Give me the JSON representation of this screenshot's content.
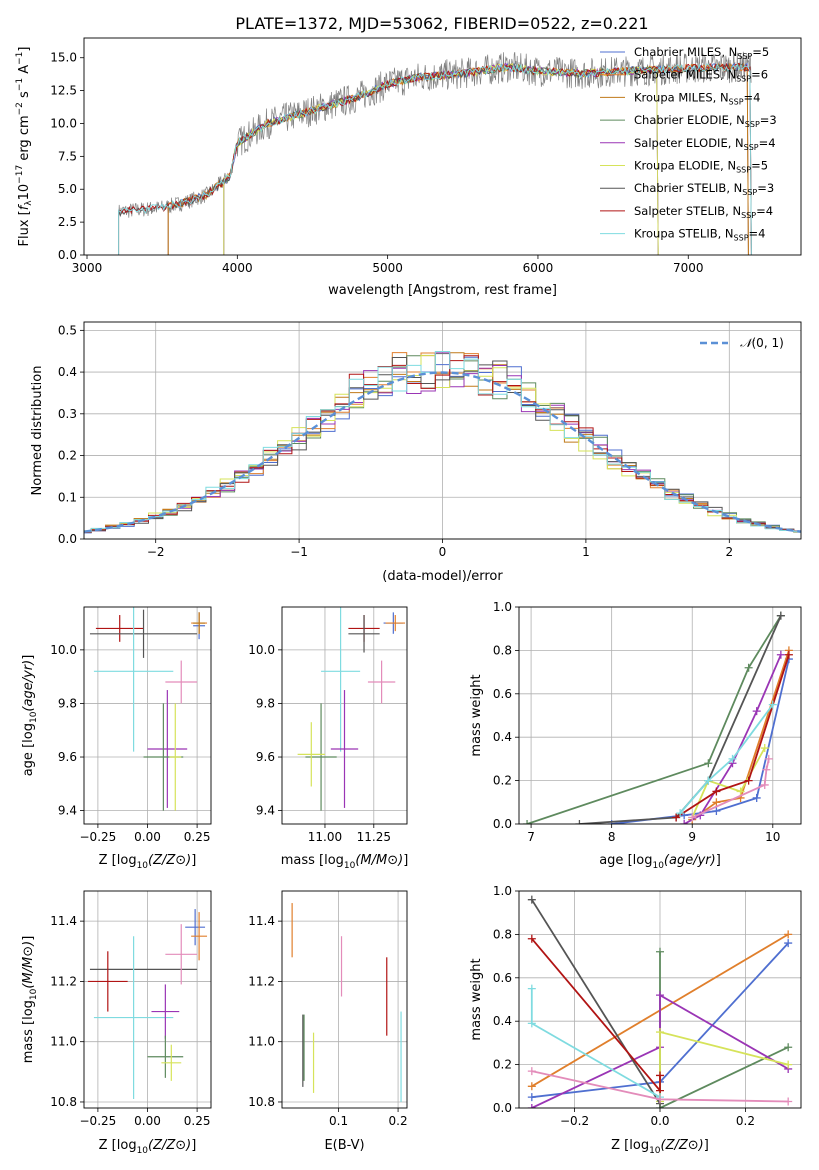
{
  "figure": {
    "title": "PLATE=1372, MJD=53062, FIBERID=0522, z=0.221"
  },
  "colors": {
    "models": [
      "#4f6fd0",
      "#e07f2c",
      "#c07a1a",
      "#5e8a5e",
      "#9a35b5",
      "#d6e35a",
      "#555555",
      "#b11414",
      "#7fdbe0"
    ],
    "extra": [
      "#e38cba",
      "#e38cba"
    ],
    "gaussian": "#5b90d6",
    "grid": "#b0b0b0"
  },
  "chart_data": [
    {
      "id": "spectrum",
      "type": "line",
      "title": "PLATE=1372, MJD=53062, FIBERID=0522, z=0.221",
      "xlabel": "wavelength [Angstrom, rest frame]",
      "ylabel": "Flux [f_λ 10^-17 erg cm^-2 s^-1 A^-1]",
      "xlim": [
        2980,
        7750
      ],
      "ylim": [
        0,
        16.5
      ],
      "xticks": [
        3000,
        4000,
        5000,
        6000,
        7000
      ],
      "yticks": [
        0.0,
        2.5,
        5.0,
        7.5,
        10.0,
        12.5,
        15.0
      ],
      "ytick_labels": [
        "0.0",
        "2.5",
        "5.0",
        "7.5",
        "10.0",
        "12.5",
        "15.0"
      ],
      "grid": false,
      "legend": "top-right",
      "series": [
        {
          "name": "Chabrier MILES, N_SSP=5",
          "label_main": "Chabrier MILES, N",
          "label_sub": "SSP",
          "label_tail": "=5",
          "start": 3540,
          "end": 7400
        },
        {
          "name": "Salpeter MILES, N_SSP=6",
          "label_main": "Salpeter MILES, N",
          "label_sub": "SSP",
          "label_tail": "=6",
          "start": 3540,
          "end": 7400
        },
        {
          "name": "Kroupa MILES, N_SSP=4",
          "label_main": "Kroupa MILES, N",
          "label_sub": "SSP",
          "label_tail": "=4",
          "start": 3540,
          "end": 7400
        },
        {
          "name": "Chabrier ELODIE, N_SSP=3",
          "label_main": "Chabrier ELODIE, N",
          "label_sub": "SSP",
          "label_tail": "=3",
          "start": 3910,
          "end": 6800
        },
        {
          "name": "Salpeter ELODIE, N_SSP=4",
          "label_main": "Salpeter ELODIE, N",
          "label_sub": "SSP",
          "label_tail": "=4",
          "start": 3910,
          "end": 6800
        },
        {
          "name": "Kroupa ELODIE, N_SSP=5",
          "label_main": "Kroupa ELODIE, N",
          "label_sub": "SSP",
          "label_tail": "=5",
          "start": 3910,
          "end": 6800
        },
        {
          "name": "Chabrier STELIB, N_SSP=3",
          "label_main": "Chabrier STELIB, N",
          "label_sub": "SSP",
          "label_tail": "=3",
          "start": 3210,
          "end": 7420
        },
        {
          "name": "Salpeter STELIB, N_SSP=4",
          "label_main": "Salpeter STELIB, N",
          "label_sub": "SSP",
          "label_tail": "=4",
          "start": 3210,
          "end": 7420
        },
        {
          "name": "Kroupa STELIB, N_SSP=4",
          "label_main": "Kroupa STELIB, N",
          "label_sub": "SSP",
          "label_tail": "=4",
          "start": 3210,
          "end": 7420
        }
      ],
      "continuum_anchors": [
        [
          3210,
          3.3
        ],
        [
          3500,
          3.6
        ],
        [
          3650,
          4.0
        ],
        [
          3800,
          4.6
        ],
        [
          3950,
          6.0
        ],
        [
          4000,
          8.5
        ],
        [
          4200,
          10.0
        ],
        [
          4500,
          11.0
        ],
        [
          4800,
          12.0
        ],
        [
          5000,
          13.0
        ],
        [
          5200,
          13.5
        ],
        [
          5500,
          13.8
        ],
        [
          5800,
          14.3
        ],
        [
          6000,
          14.0
        ],
        [
          6300,
          13.8
        ],
        [
          6600,
          14.0
        ],
        [
          7000,
          14.2
        ],
        [
          7400,
          14.3
        ]
      ]
    },
    {
      "id": "residuals",
      "type": "histogram",
      "xlabel": "(data-model)/error",
      "ylabel": "Normed distribution",
      "xlim": [
        -2.5,
        2.5
      ],
      "ylim": [
        0,
        0.52
      ],
      "xticks": [
        -2,
        -1,
        0,
        1,
        2
      ],
      "xtick_labels": [
        "−2",
        "−1",
        "0",
        "1",
        "2"
      ],
      "yticks": [
        0.0,
        0.1,
        0.2,
        0.3,
        0.4,
        0.5
      ],
      "ytick_labels": [
        "0.0",
        "0.1",
        "0.2",
        "0.3",
        "0.4",
        "0.5"
      ],
      "grid": true,
      "legend": "top-right",
      "legend_label": "N(0,1)",
      "legend_label_main": "𝒩",
      "legend_label_tail": "(0, 1)",
      "bin_width": 0.1
    },
    {
      "id": "age_vs_Z",
      "type": "errorbar",
      "xlabel": "Z [log10(Z/Z⊙)]",
      "ylabel": "age [log10(age/yr)]",
      "xlim": [
        -0.32,
        0.32
      ],
      "ylim": [
        9.35,
        10.16
      ],
      "xticks": [
        -0.25,
        0.0,
        0.25
      ],
      "xtick_labels": [
        "−0.25",
        "0.00",
        "0.25"
      ],
      "yticks": [
        9.4,
        9.6,
        9.8,
        10.0
      ],
      "ytick_labels": [
        "9.4",
        "9.6",
        "9.8",
        "10.0"
      ],
      "grid": true,
      "points": [
        {
          "x": -0.14,
          "y": 10.08,
          "xerr": 0.12,
          "yerr": 0.05,
          "c": 7
        },
        {
          "x": -0.02,
          "y": 10.06,
          "xerr": 0.27,
          "yerr": 0.09,
          "c": 6
        },
        {
          "x": -0.07,
          "y": 9.92,
          "xerr": 0.2,
          "yerr": 0.3,
          "c": 8
        },
        {
          "x": 0.17,
          "y": 9.88,
          "xerr": 0.08,
          "yerr": 0.08,
          "c": 9
        },
        {
          "x": 0.26,
          "y": 10.09,
          "xerr": 0.03,
          "yerr": 0.05,
          "c": 0
        },
        {
          "x": 0.26,
          "y": 10.1,
          "xerr": 0.04,
          "yerr": 0.04,
          "c": 1
        },
        {
          "x": 0.26,
          "y": 10.1,
          "xerr": 0.03,
          "yerr": 0.04,
          "c": 2
        },
        {
          "x": 0.1,
          "y": 9.63,
          "xerr": 0.1,
          "yerr": 0.22,
          "c": 4
        },
        {
          "x": 0.08,
          "y": 9.6,
          "xerr": 0.1,
          "yerr": 0.2,
          "c": 3
        },
        {
          "x": 0.14,
          "y": 9.6,
          "xerr": 0.03,
          "yerr": 0.2,
          "c": 5
        }
      ]
    },
    {
      "id": "age_vs_mass",
      "type": "errorbar",
      "xlabel": "mass [log10(M/M⊙)]",
      "ylabel": "",
      "xlim": [
        10.78,
        11.42
      ],
      "ylim": [
        9.35,
        10.16
      ],
      "xticks": [
        11.0,
        11.25
      ],
      "xtick_labels": [
        "11.00",
        "11.25"
      ],
      "yticks": [
        9.4,
        9.6,
        9.8,
        10.0
      ],
      "ytick_labels": [
        "9.4",
        "9.6",
        "9.8",
        "10.0"
      ],
      "grid": true,
      "points": [
        {
          "x": 11.2,
          "y": 10.08,
          "xerr": 0.08,
          "yerr": 0.05,
          "c": 7
        },
        {
          "x": 11.2,
          "y": 10.06,
          "xerr": 0.08,
          "yerr": 0.07,
          "c": 6
        },
        {
          "x": 11.35,
          "y": 10.1,
          "xerr": 0.05,
          "yerr": 0.04,
          "c": 0
        },
        {
          "x": 11.36,
          "y": 10.1,
          "xerr": 0.05,
          "yerr": 0.03,
          "c": 1
        },
        {
          "x": 11.08,
          "y": 9.92,
          "xerr": 0.1,
          "yerr": 0.3,
          "c": 8
        },
        {
          "x": 11.29,
          "y": 9.88,
          "xerr": 0.07,
          "yerr": 0.08,
          "c": 9
        },
        {
          "x": 11.1,
          "y": 9.63,
          "xerr": 0.07,
          "yerr": 0.22,
          "c": 4
        },
        {
          "x": 10.98,
          "y": 9.6,
          "xerr": 0.08,
          "yerr": 0.2,
          "c": 3
        },
        {
          "x": 10.93,
          "y": 9.61,
          "xerr": 0.07,
          "yerr": 0.12,
          "c": 5
        }
      ]
    },
    {
      "id": "weight_vs_age",
      "type": "line",
      "xlabel": "age [log10(age/yr)]",
      "ylabel": "mass weight",
      "xlim": [
        6.85,
        10.35
      ],
      "ylim": [
        0,
        1.0
      ],
      "xticks": [
        7,
        8,
        9,
        10
      ],
      "xtick_labels": [
        "7",
        "8",
        "9",
        "10"
      ],
      "yticks": [
        0.0,
        0.2,
        0.4,
        0.6,
        0.8,
        1.0
      ],
      "ytick_labels": [
        "0.0",
        "0.2",
        "0.4",
        "0.6",
        "0.8",
        "1.0"
      ],
      "grid": true,
      "series": [
        {
          "c": 0,
          "x": [
            8.0,
            8.9,
            9.3,
            9.8,
            10.2
          ],
          "y": [
            0.0,
            0.04,
            0.06,
            0.12,
            0.76
          ]
        },
        {
          "c": 1,
          "x": [
            9.0,
            9.3,
            9.6,
            10.2
          ],
          "y": [
            0.02,
            0.1,
            0.12,
            0.8
          ]
        },
        {
          "c": 3,
          "x": [
            6.95,
            9.2,
            9.7,
            10.1
          ],
          "y": [
            0.0,
            0.28,
            0.72,
            0.96
          ]
        },
        {
          "c": 4,
          "x": [
            8.9,
            9.1,
            9.5,
            9.8,
            10.1
          ],
          "y": [
            0.0,
            0.04,
            0.28,
            0.52,
            0.78
          ]
        },
        {
          "c": 5,
          "x": [
            9.0,
            9.2,
            9.6,
            9.9
          ],
          "y": [
            0.03,
            0.2,
            0.15,
            0.35
          ]
        },
        {
          "c": 6,
          "x": [
            7.6,
            8.8,
            9.2,
            10.1
          ],
          "y": [
            0.0,
            0.03,
            0.2,
            0.96
          ]
        },
        {
          "c": 7,
          "x": [
            8.8,
            9.3,
            9.7,
            10.2
          ],
          "y": [
            0.03,
            0.15,
            0.2,
            0.78
          ]
        },
        {
          "c": 8,
          "x": [
            8.85,
            9.2,
            9.5,
            10.0
          ],
          "y": [
            0.05,
            0.2,
            0.3,
            0.55
          ]
        },
        {
          "c": 9,
          "x": [
            9.0,
            9.9,
            9.92,
            9.95
          ],
          "y": [
            0.03,
            0.18,
            0.25,
            0.3
          ]
        }
      ]
    },
    {
      "id": "mass_vs_Z",
      "type": "errorbar",
      "xlabel": "Z [log10(Z/Z⊙)]",
      "ylabel": "mass [log10(M/M⊙)]",
      "xlim": [
        -0.32,
        0.32
      ],
      "ylim": [
        10.78,
        11.5
      ],
      "xticks": [
        -0.25,
        0.0,
        0.25
      ],
      "xtick_labels": [
        "−0.25",
        "0.00",
        "0.25"
      ],
      "yticks": [
        10.8,
        11.0,
        11.2,
        11.4
      ],
      "ytick_labels": [
        "10.8",
        "11.0",
        "11.2",
        "11.4"
      ],
      "grid": true,
      "points": [
        {
          "x": -0.02,
          "y": 11.24,
          "xerr": 0.27,
          "yerr": 0.0,
          "c": 6
        },
        {
          "x": -0.2,
          "y": 11.2,
          "xerr": 0.1,
          "yerr": 0.1,
          "c": 7
        },
        {
          "x": 0.17,
          "y": 11.29,
          "xerr": 0.08,
          "yerr": 0.1,
          "c": 9
        },
        {
          "x": 0.24,
          "y": 11.38,
          "xerr": 0.05,
          "yerr": 0.06,
          "c": 0
        },
        {
          "x": 0.26,
          "y": 11.35,
          "xerr": 0.04,
          "yerr": 0.08,
          "c": 1
        },
        {
          "x": -0.07,
          "y": 11.08,
          "xerr": 0.2,
          "yerr": 0.27,
          "c": 8
        },
        {
          "x": 0.09,
          "y": 11.1,
          "xerr": 0.07,
          "yerr": 0.09,
          "c": 4
        },
        {
          "x": 0.09,
          "y": 10.95,
          "xerr": 0.09,
          "yerr": 0.07,
          "c": 3
        },
        {
          "x": 0.12,
          "y": 10.93,
          "xerr": 0.05,
          "yerr": 0.06,
          "c": 5
        }
      ]
    },
    {
      "id": "mass_vs_ebv",
      "type": "errorbar",
      "xlabel": "E(B-V)",
      "ylabel": "",
      "xlim": [
        0.005,
        0.215
      ],
      "ylim": [
        10.78,
        11.5
      ],
      "xticks": [
        0.1,
        0.2
      ],
      "xtick_labels": [
        "0.1",
        "0.2"
      ],
      "yticks": [
        10.8,
        11.0,
        11.2,
        11.4
      ],
      "ytick_labels": [
        "10.8",
        "11.0",
        "11.2",
        "11.4"
      ],
      "grid": true,
      "points": [
        {
          "x": 0.022,
          "y": 11.37,
          "xerr": 0.0,
          "yerr": 0.09,
          "c": 1
        },
        {
          "x": 0.04,
          "y": 10.97,
          "xerr": 0.0,
          "yerr": 0.12,
          "c": 6
        },
        {
          "x": 0.042,
          "y": 10.98,
          "xerr": 0.0,
          "yerr": 0.11,
          "c": 3
        },
        {
          "x": 0.058,
          "y": 10.93,
          "xerr": 0.0,
          "yerr": 0.1,
          "c": 5
        },
        {
          "x": 0.105,
          "y": 11.25,
          "xerr": 0.0,
          "yerr": 0.1,
          "c": 9
        },
        {
          "x": 0.181,
          "y": 11.15,
          "xerr": 0.0,
          "yerr": 0.13,
          "c": 7
        },
        {
          "x": 0.205,
          "y": 10.95,
          "xerr": 0.0,
          "yerr": 0.15,
          "c": 8
        }
      ]
    },
    {
      "id": "weight_vs_Z",
      "type": "line",
      "xlabel": "Z [log10(Z/Z⊙)]",
      "ylabel": "mass weight",
      "xlim": [
        -0.33,
        0.33
      ],
      "ylim": [
        0,
        1.0
      ],
      "xticks": [
        -0.2,
        0.0,
        0.2
      ],
      "xtick_labels": [
        "−0.2",
        "0.0",
        "0.2"
      ],
      "yticks": [
        0.0,
        0.2,
        0.4,
        0.6,
        0.8,
        1.0
      ],
      "ytick_labels": [
        "0.0",
        "0.2",
        "0.4",
        "0.6",
        "0.8",
        "1.0"
      ],
      "grid": true,
      "series": [
        {
          "c": 0,
          "x": [
            -0.3,
            0.0,
            0.3
          ],
          "y": [
            0.05,
            0.12,
            0.76
          ]
        },
        {
          "c": 1,
          "x": [
            -0.3,
            0.3
          ],
          "y": [
            0.1,
            0.8
          ]
        },
        {
          "c": 3,
          "x": [
            0.0,
            0.0,
            0.3
          ],
          "y": [
            0.72,
            0.0,
            0.28
          ]
        },
        {
          "c": 4,
          "x": [
            -0.3,
            0.0,
            0.0,
            0.3
          ],
          "y": [
            0.0,
            0.28,
            0.52,
            0.18
          ]
        },
        {
          "c": 5,
          "x": [
            0.0,
            0.0,
            0.3
          ],
          "y": [
            0.03,
            0.35,
            0.2
          ]
        },
        {
          "c": 6,
          "x": [
            -0.3,
            0.0
          ],
          "y": [
            0.96,
            0.02
          ]
        },
        {
          "c": 7,
          "x": [
            -0.3,
            0.0,
            0.0
          ],
          "y": [
            0.78,
            0.08,
            0.15
          ]
        },
        {
          "c": 8,
          "x": [
            -0.3,
            -0.3,
            0.0
          ],
          "y": [
            0.55,
            0.39,
            0.05
          ]
        },
        {
          "c": 9,
          "x": [
            -0.3,
            0.0,
            0.3
          ],
          "y": [
            0.17,
            0.04,
            0.03
          ]
        }
      ]
    }
  ]
}
